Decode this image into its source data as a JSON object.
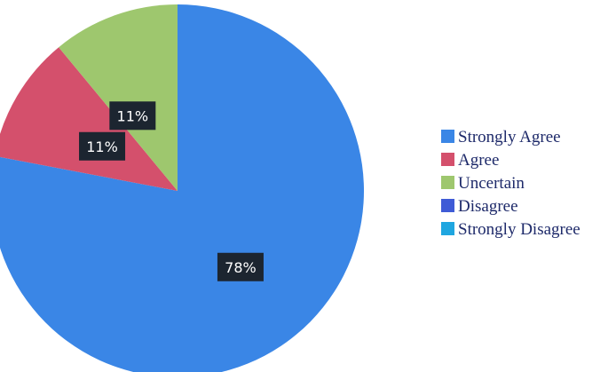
{
  "chart_data": {
    "type": "pie",
    "slices": [
      {
        "name": "Strongly Agree",
        "value": 78,
        "label": "78%",
        "color": "#3a86e6"
      },
      {
        "name": "Agree",
        "value": 11,
        "label": "11%",
        "color": "#d4506c"
      },
      {
        "name": "Uncertain",
        "value": 11,
        "label": "11%",
        "color": "#9ec76e"
      },
      {
        "name": "Disagree",
        "value": 0,
        "label": "",
        "color": "#3f5bd6"
      },
      {
        "name": "Strongly Disagree",
        "value": 0,
        "label": "",
        "color": "#1fa6e0"
      }
    ],
    "legend": {
      "position": "right",
      "entries": [
        "Strongly Agree",
        "Agree",
        "Uncertain",
        "Disagree",
        "Strongly Disagree"
      ]
    },
    "start": "top",
    "direction": "clockwise"
  }
}
